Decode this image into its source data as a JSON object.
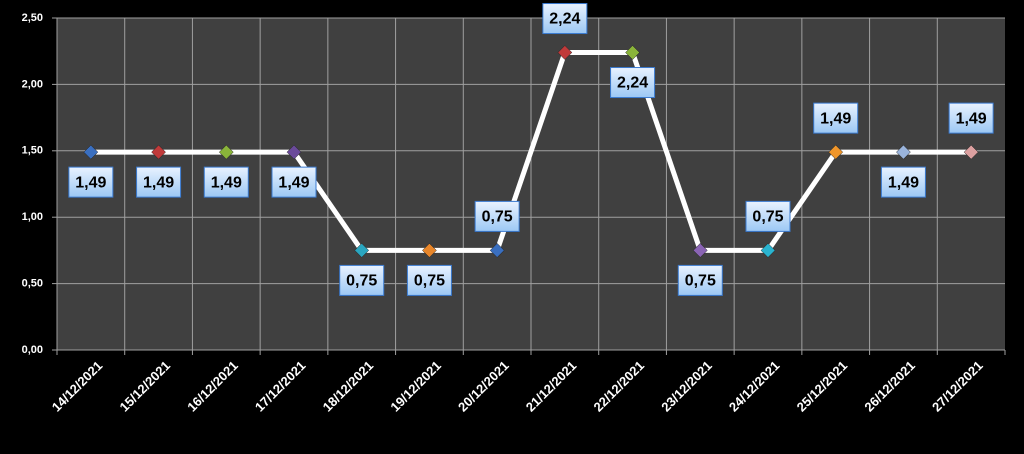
{
  "chart_data": {
    "type": "line",
    "categories": [
      "14/12/2021",
      "15/12/2021",
      "16/12/2021",
      "17/12/2021",
      "18/12/2021",
      "19/12/2021",
      "20/12/2021",
      "21/12/2021",
      "22/12/2021",
      "23/12/2021",
      "24/12/2021",
      "25/12/2021",
      "26/12/2021",
      "27/12/2021"
    ],
    "values": [
      1.49,
      1.49,
      1.49,
      1.49,
      0.75,
      0.75,
      0.75,
      2.24,
      2.24,
      0.75,
      0.75,
      1.49,
      1.49,
      1.49
    ],
    "value_labels": [
      "1,49",
      "1,49",
      "1,49",
      "1,49",
      "0,75",
      "0,75",
      "0,75",
      "2,24",
      "2,24",
      "0,75",
      "0,75",
      "1,49",
      "1,49",
      "1,49"
    ],
    "color": "#ffffff",
    "point_colors": [
      "#3a6fc0",
      "#c03a3a",
      "#8ab43a",
      "#6a4a9a",
      "#2aa6c0",
      "#e8862a",
      "#3a6fc0",
      "#c03a3a",
      "#8ab43a",
      "#8a64b4",
      "#2ab4d0",
      "#f0962a",
      "#9ab4dc",
      "#dca0a0"
    ],
    "ylim": [
      0,
      2.5
    ],
    "yticks": [
      {
        "value": 0,
        "label": "0,00"
      },
      {
        "value": 0.5,
        "label": "0,50"
      },
      {
        "value": 1,
        "label": "1,00"
      },
      {
        "value": 1.5,
        "label": "1,50"
      },
      {
        "value": 2,
        "label": "2,00"
      },
      {
        "value": 2.5,
        "label": "2,50"
      }
    ],
    "grid": true
  }
}
